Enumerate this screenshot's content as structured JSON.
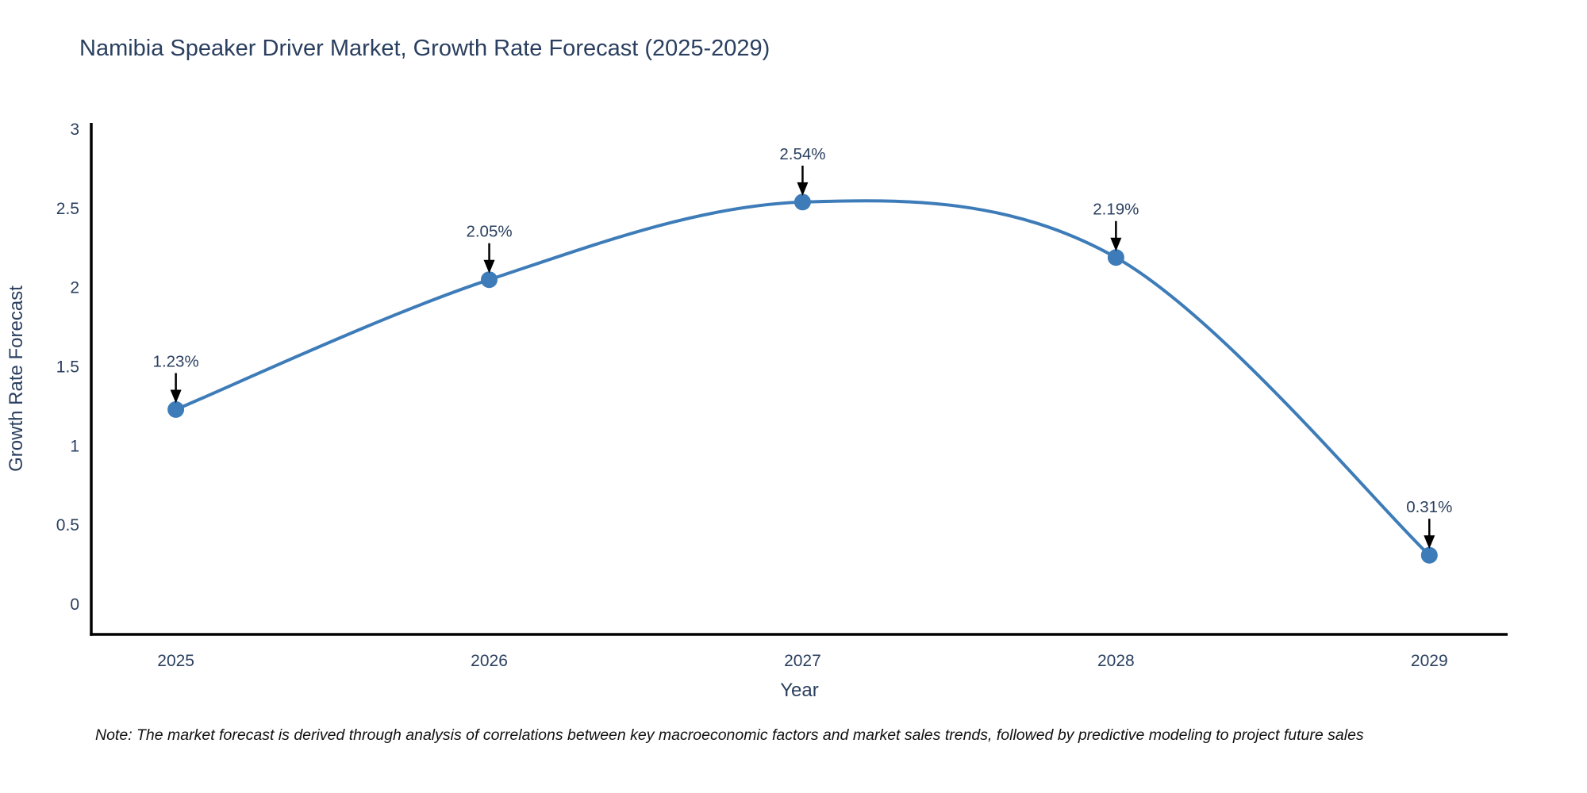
{
  "title": "Namibia Speaker Driver Market, Growth Rate Forecast (2025-2029)",
  "note": "Note: The market forecast is derived through analysis of correlations between key macroeconomic factors and market sales trends, followed by predictive modeling to project future sales",
  "colors": {
    "background": "#ffffff",
    "line": "#3d7cb8",
    "marker": "#3d7cb8",
    "axis": "#000000",
    "text": "#2a3f5f",
    "annotation_text": "#2a3f5f",
    "arrow": "#000000",
    "note_text": "#111111"
  },
  "chart_data": {
    "type": "line",
    "title": "Namibia Speaker Driver Market, Growth Rate Forecast (2025-2029)",
    "x": [
      2025,
      2026,
      2027,
      2028,
      2029
    ],
    "series": [
      {
        "name": "Growth Rate Forecast",
        "values": [
          1.23,
          2.05,
          2.54,
          2.19,
          0.31
        ]
      }
    ],
    "point_labels": [
      "1.23%",
      "2.05%",
      "2.54%",
      "2.19%",
      "0.31%"
    ],
    "xlabel": "Year",
    "ylabel": "Growth Rate Forecast",
    "xticks": [
      "2025",
      "2026",
      "2027",
      "2028",
      "2029"
    ],
    "yticks": [
      "0",
      "0.5",
      "1",
      "1.5",
      "2",
      "2.5",
      "3"
    ],
    "ytick_values": [
      0,
      0.5,
      1,
      1.5,
      2,
      2.5,
      3
    ],
    "xlim": [
      2024.73,
      2029.25
    ],
    "ylim": [
      -0.19,
      3.04
    ],
    "line_shape": "spline",
    "grid": false,
    "legend_position": "none",
    "annotation_style": "value label with black arrow pointing down to each point"
  }
}
